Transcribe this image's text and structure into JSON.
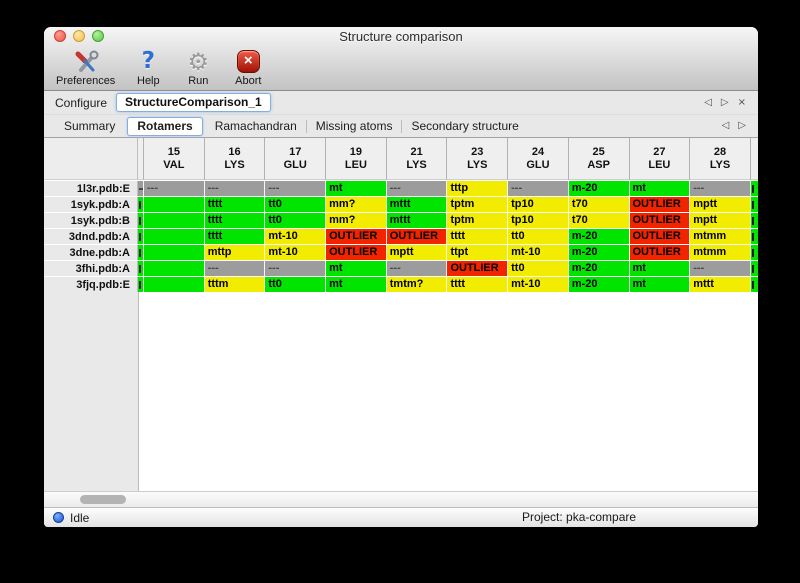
{
  "window": {
    "title": "Structure comparison"
  },
  "toolbar": {
    "items": [
      {
        "label": "Preferences",
        "icon": "tools"
      },
      {
        "label": "Help",
        "icon": "question"
      },
      {
        "label": "Run",
        "icon": "gear"
      },
      {
        "label": "Abort",
        "icon": "abort"
      }
    ]
  },
  "configure": {
    "label": "Configure",
    "name": "StructureComparison_1",
    "nav": [
      "prev",
      "next",
      "close"
    ]
  },
  "tabs": {
    "items": [
      {
        "label": "Summary",
        "selected": false
      },
      {
        "label": "Rotamers",
        "selected": true
      },
      {
        "label": "Ramachandran",
        "selected": false
      },
      {
        "label": "Missing atoms",
        "selected": false
      },
      {
        "label": "Secondary structure",
        "selected": false
      }
    ],
    "nav": [
      "prev",
      "next"
    ]
  },
  "colors": {
    "green": "#00e400",
    "yellow": "#f2ec00",
    "red": "#f22400",
    "gray": "#9c9c9c"
  },
  "table": {
    "columns": [
      {
        "num": "15",
        "res": "VAL"
      },
      {
        "num": "16",
        "res": "LYS"
      },
      {
        "num": "17",
        "res": "GLU"
      },
      {
        "num": "19",
        "res": "LEU"
      },
      {
        "num": "21",
        "res": "LYS"
      },
      {
        "num": "23",
        "res": "LYS"
      },
      {
        "num": "24",
        "res": "GLU"
      },
      {
        "num": "25",
        "res": "ASP"
      },
      {
        "num": "27",
        "res": "LEU"
      },
      {
        "num": "28",
        "res": "LYS"
      }
    ],
    "rows": [
      {
        "label": "1l3r.pdb:E",
        "left_clip": "gray",
        "right_clip": "green",
        "cells": [
          {
            "text": "---",
            "color": "gray"
          },
          {
            "text": "---",
            "color": "gray"
          },
          {
            "text": "---",
            "color": "gray"
          },
          {
            "text": "mt",
            "color": "green"
          },
          {
            "text": "---",
            "color": "gray"
          },
          {
            "text": "tttp",
            "color": "yellow"
          },
          {
            "text": "---",
            "color": "gray"
          },
          {
            "text": "m-20",
            "color": "green"
          },
          {
            "text": "mt",
            "color": "green"
          },
          {
            "text": "---",
            "color": "gray"
          }
        ]
      },
      {
        "label": "1syk.pdb:A",
        "left_clip": "green",
        "right_clip": "green",
        "cells": [
          {
            "text": "",
            "color": "green"
          },
          {
            "text": "tttt",
            "color": "green"
          },
          {
            "text": "tt0",
            "color": "green"
          },
          {
            "text": "mm?",
            "color": "yellow"
          },
          {
            "text": "mttt",
            "color": "green"
          },
          {
            "text": "tptm",
            "color": "yellow"
          },
          {
            "text": "tp10",
            "color": "yellow"
          },
          {
            "text": "t70",
            "color": "yellow"
          },
          {
            "text": "OUTLIER",
            "color": "red"
          },
          {
            "text": "mptt",
            "color": "yellow"
          }
        ]
      },
      {
        "label": "1syk.pdb:B",
        "left_clip": "green",
        "right_clip": "green",
        "cells": [
          {
            "text": "",
            "color": "green"
          },
          {
            "text": "tttt",
            "color": "green"
          },
          {
            "text": "tt0",
            "color": "green"
          },
          {
            "text": "mm?",
            "color": "yellow"
          },
          {
            "text": "mttt",
            "color": "green"
          },
          {
            "text": "tptm",
            "color": "yellow"
          },
          {
            "text": "tp10",
            "color": "yellow"
          },
          {
            "text": "t70",
            "color": "yellow"
          },
          {
            "text": "OUTLIER",
            "color": "red"
          },
          {
            "text": "mptt",
            "color": "yellow"
          }
        ]
      },
      {
        "label": "3dnd.pdb:A",
        "left_clip": "green",
        "right_clip": "green",
        "cells": [
          {
            "text": "",
            "color": "green"
          },
          {
            "text": "tttt",
            "color": "green"
          },
          {
            "text": "mt-10",
            "color": "yellow"
          },
          {
            "text": "OUTLIER",
            "color": "red"
          },
          {
            "text": "OUTLIER",
            "color": "red"
          },
          {
            "text": "tttt",
            "color": "yellow"
          },
          {
            "text": "tt0",
            "color": "yellow"
          },
          {
            "text": "m-20",
            "color": "green"
          },
          {
            "text": "OUTLIER",
            "color": "red"
          },
          {
            "text": "mtmm",
            "color": "yellow"
          }
        ]
      },
      {
        "label": "3dne.pdb:A",
        "left_clip": "green",
        "right_clip": "green",
        "cells": [
          {
            "text": "",
            "color": "green"
          },
          {
            "text": "mttp",
            "color": "yellow"
          },
          {
            "text": "mt-10",
            "color": "yellow"
          },
          {
            "text": "OUTLIER",
            "color": "red"
          },
          {
            "text": "mptt",
            "color": "yellow"
          },
          {
            "text": "ttpt",
            "color": "yellow"
          },
          {
            "text": "mt-10",
            "color": "yellow"
          },
          {
            "text": "m-20",
            "color": "green"
          },
          {
            "text": "OUTLIER",
            "color": "red"
          },
          {
            "text": "mtmm",
            "color": "yellow"
          }
        ]
      },
      {
        "label": "3fhi.pdb:A",
        "left_clip": "green",
        "right_clip": "green",
        "cells": [
          {
            "text": "",
            "color": "green"
          },
          {
            "text": "---",
            "color": "gray"
          },
          {
            "text": "---",
            "color": "gray"
          },
          {
            "text": "mt",
            "color": "green"
          },
          {
            "text": "---",
            "color": "gray"
          },
          {
            "text": "OUTLIER",
            "color": "red"
          },
          {
            "text": "tt0",
            "color": "yellow"
          },
          {
            "text": "m-20",
            "color": "green"
          },
          {
            "text": "mt",
            "color": "green"
          },
          {
            "text": "---",
            "color": "gray"
          }
        ]
      },
      {
        "label": "3fjq.pdb:E",
        "left_clip": "green",
        "right_clip": "green",
        "cells": [
          {
            "text": "",
            "color": "green"
          },
          {
            "text": "tttm",
            "color": "yellow"
          },
          {
            "text": "tt0",
            "color": "green"
          },
          {
            "text": "mt",
            "color": "green"
          },
          {
            "text": "tmtm?",
            "color": "yellow"
          },
          {
            "text": "tttt",
            "color": "yellow"
          },
          {
            "text": "mt-10",
            "color": "yellow"
          },
          {
            "text": "m-20",
            "color": "green"
          },
          {
            "text": "mt",
            "color": "green"
          },
          {
            "text": "mttt",
            "color": "yellow"
          }
        ]
      }
    ]
  },
  "statusbar": {
    "status": "Idle",
    "project": "Project: pka-compare"
  }
}
